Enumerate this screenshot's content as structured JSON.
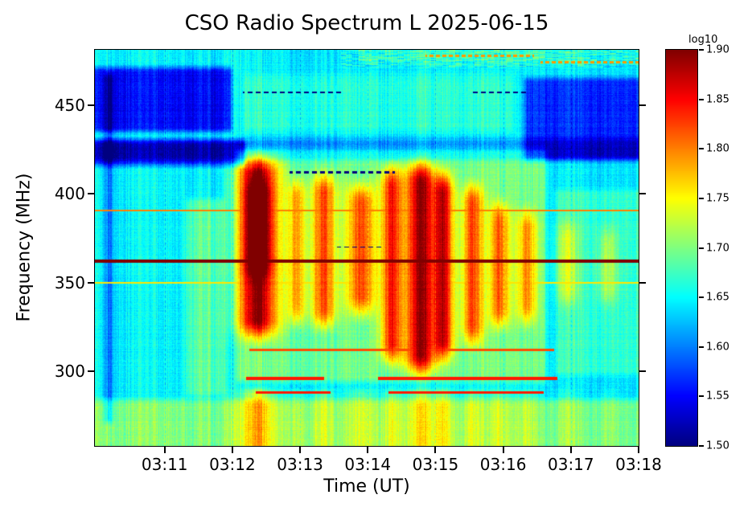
{
  "title": "CSO Radio Spectrum L 2025-06-15",
  "xlabel": "Time (UT)",
  "ylabel": "Frequency (MHz)",
  "colorbar_label": "log10",
  "chart_data": {
    "type": "heatmap",
    "title": "CSO Radio Spectrum L 2025-06-15",
    "xlabel": "Time (UT)",
    "ylabel": "Frequency (MHz)",
    "colormap": "jet",
    "x_range": [
      9.97,
      18.0
    ],
    "x_units": "minutes after 03:00 UT",
    "y_range": [
      258,
      481
    ],
    "y_units": "MHz",
    "x_ticks": [
      {
        "t": 11,
        "label": "03:11"
      },
      {
        "t": 12,
        "label": "03:12"
      },
      {
        "t": 13,
        "label": "03:13"
      },
      {
        "t": 14,
        "label": "03:14"
      },
      {
        "t": 15,
        "label": "03:15"
      },
      {
        "t": 16,
        "label": "03:16"
      },
      {
        "t": 17,
        "label": "03:17"
      },
      {
        "t": 18,
        "label": "03:18"
      }
    ],
    "y_ticks": [
      {
        "f": 300,
        "label": "300"
      },
      {
        "f": 350,
        "label": "350"
      },
      {
        "f": 400,
        "label": "400"
      },
      {
        "f": 450,
        "label": "450"
      }
    ],
    "value_scale": {
      "label": "log10",
      "min": 1.5,
      "max": 1.9
    },
    "colorbar_ticks": [
      {
        "v": 1.9,
        "label": "1.90"
      },
      {
        "v": 1.85,
        "label": "1.85"
      },
      {
        "v": 1.8,
        "label": "1.80"
      },
      {
        "v": 1.75,
        "label": "1.75"
      },
      {
        "v": 1.7,
        "label": "1.70"
      },
      {
        "v": 1.65,
        "label": "1.65"
      },
      {
        "v": 1.6,
        "label": "1.60"
      },
      {
        "v": 1.55,
        "label": "1.55"
      },
      {
        "v": 1.5,
        "label": "1.50"
      }
    ],
    "background_level": 1.645,
    "noise": {
      "pixel": 0.022,
      "column": 0.028,
      "cluster": 0.02,
      "row": 0.01
    },
    "regions": [
      {
        "t0": 9.7,
        "t1": 12.05,
        "f0": 432,
        "f1": 474,
        "delta": -0.095
      },
      {
        "t0": 9.7,
        "t1": 12.25,
        "f0": 413,
        "f1": 433,
        "delta": -0.09
      },
      {
        "t0": 9.7,
        "t1": 18.3,
        "f0": 416,
        "f1": 434,
        "delta": -0.04
      },
      {
        "t0": 16.25,
        "t1": 18.3,
        "f0": 416,
        "f1": 468,
        "delta": -0.075
      },
      {
        "t0": 10.05,
        "t1": 10.3,
        "f0": 268,
        "f1": 470,
        "delta": -0.05
      },
      {
        "t0": 9.7,
        "t1": 18.3,
        "f0": 248,
        "f1": 287,
        "delta": 0.055
      },
      {
        "t0": 11.25,
        "t1": 11.95,
        "f0": 283,
        "f1": 400,
        "delta": 0.04
      },
      {
        "t0": 12.0,
        "t1": 16.7,
        "f0": 291,
        "f1": 428,
        "delta": 0.05
      },
      {
        "t0": 16.7,
        "t1": 18.3,
        "f0": 295,
        "f1": 405,
        "delta": 0.03
      },
      {
        "t0": 13.8,
        "t1": 18.3,
        "f0": 470,
        "f1": 488,
        "delta": 0.02
      },
      {
        "t0": 12.1,
        "t1": 16.2,
        "f0": 432,
        "f1": 470,
        "delta": 0.02
      }
    ],
    "bursts": [
      {
        "t": 12.38,
        "sig": 0.2,
        "f0": 312,
        "f1": 428,
        "amp": 0.2
      },
      {
        "t": 12.38,
        "sig": 0.13,
        "f0": 345,
        "f1": 415,
        "amp": 0.08
      },
      {
        "t": 12.95,
        "sig": 0.09,
        "f0": 320,
        "f1": 415,
        "amp": 0.1
      },
      {
        "t": 13.35,
        "sig": 0.13,
        "f0": 318,
        "f1": 418,
        "amp": 0.13
      },
      {
        "t": 13.9,
        "sig": 0.14,
        "f0": 325,
        "f1": 412,
        "amp": 0.13
      },
      {
        "t": 14.35,
        "sig": 0.11,
        "f0": 298,
        "f1": 422,
        "amp": 0.15
      },
      {
        "t": 14.78,
        "sig": 0.16,
        "f0": 292,
        "f1": 424,
        "amp": 0.19
      },
      {
        "t": 15.12,
        "sig": 0.1,
        "f0": 300,
        "f1": 418,
        "amp": 0.16
      },
      {
        "t": 15.55,
        "sig": 0.11,
        "f0": 308,
        "f1": 412,
        "amp": 0.13
      },
      {
        "t": 15.95,
        "sig": 0.1,
        "f0": 318,
        "f1": 402,
        "amp": 0.12
      },
      {
        "t": 16.35,
        "sig": 0.1,
        "f0": 320,
        "f1": 398,
        "amp": 0.1
      },
      {
        "t": 16.95,
        "sig": 0.11,
        "f0": 330,
        "f1": 392,
        "amp": 0.06
      },
      {
        "t": 17.55,
        "sig": 0.1,
        "f0": 330,
        "f1": 388,
        "amp": 0.05
      }
    ],
    "bottom_band_burst_gain": 0.3,
    "spectral_lines": [
      {
        "f": 362,
        "hw": 0.95,
        "value": 1.92,
        "segments": [
          [
            9.7,
            18.3
          ]
        ]
      },
      {
        "f": 390.5,
        "hw": 0.5,
        "value": 1.8,
        "segments": [
          [
            9.7,
            18.3
          ]
        ]
      },
      {
        "f": 350,
        "hw": 0.45,
        "value": 1.76,
        "segments": [
          [
            9.7,
            18.3
          ]
        ]
      },
      {
        "f": 312,
        "hw": 0.55,
        "value": 1.82,
        "segments": [
          [
            12.25,
            16.75
          ]
        ]
      },
      {
        "f": 296,
        "hw": 0.75,
        "value": 1.84,
        "segments": [
          [
            12.2,
            13.35
          ],
          [
            14.15,
            16.8
          ]
        ]
      },
      {
        "f": 288,
        "hw": 0.75,
        "value": 1.84,
        "segments": [
          [
            12.35,
            13.45
          ],
          [
            14.3,
            16.6
          ]
        ]
      }
    ],
    "dropout_dashes": [
      {
        "f": 457,
        "hw": 0.5,
        "segments": [
          [
            12.15,
            13.6
          ],
          [
            15.55,
            16.35
          ]
        ]
      },
      {
        "f": 412,
        "hw": 0.5,
        "segments": [
          [
            12.85,
            14.4
          ]
        ]
      },
      {
        "f": 370,
        "hw": 0.4,
        "segments": [
          [
            13.55,
            14.25
          ]
        ]
      }
    ],
    "warm_dashes": [
      {
        "f": 477.5,
        "hw": 0.6,
        "segments": [
          [
            14.85,
            16.45
          ]
        ]
      },
      {
        "f": 474,
        "hw": 0.5,
        "segments": [
          [
            16.55,
            18.05
          ]
        ]
      }
    ],
    "v_dashes": [
      11,
      12,
      13,
      14,
      15,
      16,
      17
    ],
    "top_streaks": {
      "f_min": 471,
      "t_min": 13.6,
      "amp": 0.055
    }
  }
}
